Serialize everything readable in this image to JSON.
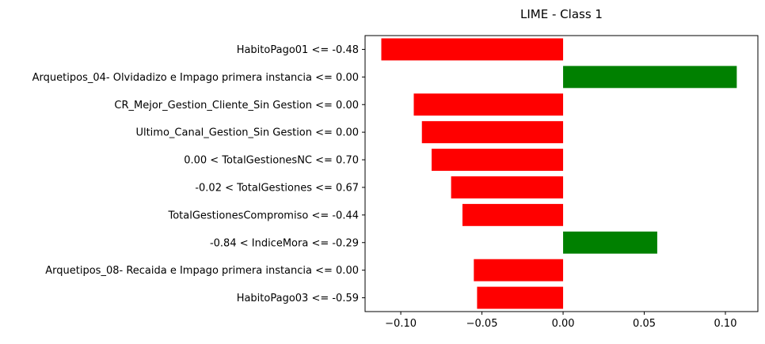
{
  "chart_data": {
    "type": "bar",
    "orientation": "horizontal",
    "title": "LIME - Class 1",
    "xlabel": "",
    "ylabel": "",
    "xlim": [
      -0.122,
      0.12
    ],
    "xticks": [
      -0.1,
      -0.05,
      0.0,
      0.05,
      0.1
    ],
    "xtick_labels": [
      "−0.10",
      "−0.05",
      "0.00",
      "0.05",
      "0.10"
    ],
    "grid": false,
    "legend": "none",
    "colors": {
      "positive": "#008000",
      "negative": "#ff0000"
    },
    "categories": [
      "HabitoPago01 <= -0.48",
      "Arquetipos_04- Olvidadizo e Impago primera instancia <= 0.00",
      "CR_Mejor_Gestion_Cliente_Sin Gestion <= 0.00",
      "Ultimo_Canal_Gestion_Sin Gestion <= 0.00",
      "0.00 < TotalGestionesNC <= 0.70",
      "-0.02 < TotalGestiones <= 0.67",
      "TotalGestionesCompromiso <= -0.44",
      "-0.84 < IndiceMora <= -0.29",
      "Arquetipos_08- Recaida e Impago primera instancia <= 0.00",
      "HabitoPago03 <= -0.59"
    ],
    "values": [
      -0.112,
      0.107,
      -0.092,
      -0.087,
      -0.081,
      -0.069,
      -0.062,
      0.058,
      -0.055,
      -0.053
    ]
  }
}
